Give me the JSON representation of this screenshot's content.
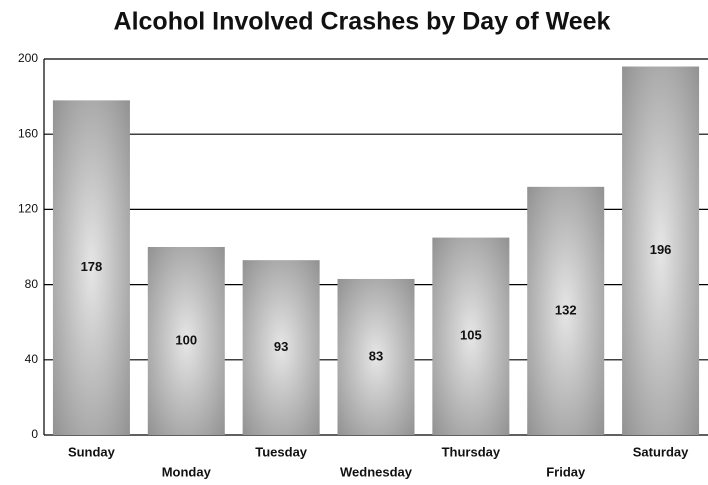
{
  "chart_data": {
    "type": "bar",
    "title": "Alcohol Involved Crashes by Day of Week",
    "categories": [
      "Sunday",
      "Monday",
      "Tuesday",
      "Wednesday",
      "Thursday",
      "Friday",
      "Saturday"
    ],
    "values": [
      178,
      100,
      93,
      83,
      105,
      132,
      196
    ],
    "color": "#8c8c8c",
    "ylim": [
      0,
      200
    ],
    "yticks": [
      0,
      40,
      80,
      120,
      160,
      200
    ],
    "grid": true
  }
}
